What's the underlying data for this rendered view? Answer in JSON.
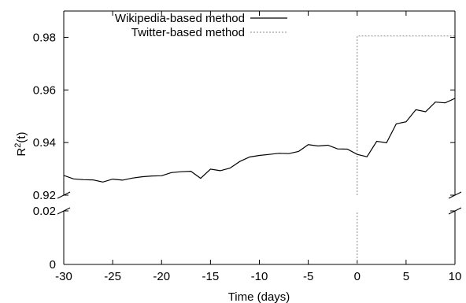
{
  "chart_data": {
    "type": "line",
    "xlabel": "Time (days)",
    "ylabel_main": "R",
    "ylabel_sup": "2",
    "ylabel_tail": "(t)",
    "xlim": [
      -30,
      10
    ],
    "x_ticks": [
      -30,
      -25,
      -20,
      -15,
      -10,
      -5,
      0,
      5,
      10
    ],
    "y_axis_broken": true,
    "ylim_upper": [
      0.92,
      0.99
    ],
    "ylim_lower": [
      0,
      0.02
    ],
    "y_ticks_upper": [
      0.92,
      0.94,
      0.96,
      0.98
    ],
    "y_ticks_lower": [
      0,
      0.02
    ],
    "legend_position": "top",
    "series": [
      {
        "name": "Wikipedia-based method",
        "style": "solid",
        "color": "#000000",
        "x": [
          -30,
          -29,
          -28,
          -27,
          -26,
          -25,
          -24,
          -23,
          -22,
          -21,
          -20,
          -19,
          -18,
          -17,
          -16,
          -15,
          -14,
          -13,
          -12,
          -11,
          -10,
          -9,
          -8,
          -7,
          -6,
          -5,
          -4,
          -3,
          -2,
          -1,
          0,
          1,
          2,
          3,
          4,
          5,
          6,
          7,
          8,
          9,
          10
        ],
        "y": [
          0.9275,
          0.9262,
          0.9259,
          0.9258,
          0.925,
          0.9261,
          0.9257,
          0.9265,
          0.927,
          0.9273,
          0.9274,
          0.9286,
          0.9289,
          0.9291,
          0.9264,
          0.9299,
          0.9293,
          0.9303,
          0.9328,
          0.9345,
          0.9351,
          0.9355,
          0.9359,
          0.9358,
          0.9366,
          0.9392,
          0.9387,
          0.939,
          0.9376,
          0.9375,
          0.9355,
          0.9346,
          0.9405,
          0.9399,
          0.9471,
          0.9479,
          0.9525,
          0.9517,
          0.9554,
          0.9551,
          0.9568
        ]
      },
      {
        "name": "Twitter-based method",
        "style": "dashed",
        "color": "#888888",
        "x": [
          0,
          0,
          10
        ],
        "y": [
          0,
          0.9805,
          0.9805
        ]
      }
    ]
  }
}
